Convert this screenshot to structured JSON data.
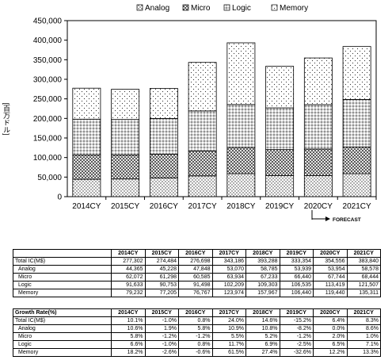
{
  "chart_data": {
    "type": "bar",
    "stacked": true,
    "categories": [
      "2014CY",
      "2015CY",
      "2016CY",
      "2017CY",
      "2018CY",
      "2019CY",
      "2020CY",
      "2021CY"
    ],
    "series": [
      {
        "name": "Analog",
        "pattern": "dots-dense",
        "values": [
          44365,
          45228,
          47848,
          53070,
          58785,
          53939,
          53954,
          58578
        ]
      },
      {
        "name": "Micro",
        "pattern": "crosshatch",
        "values": [
          62072,
          61298,
          60585,
          63934,
          67233,
          66440,
          67744,
          68444
        ]
      },
      {
        "name": "Logic",
        "pattern": "grid-dots",
        "values": [
          91633,
          90753,
          91498,
          102209,
          109303,
          106535,
          113419,
          121507
        ]
      },
      {
        "name": "Memory",
        "pattern": "sparse-dots",
        "values": [
          79232,
          77205,
          76767,
          123974,
          157967,
          106440,
          119440,
          135311
        ]
      }
    ],
    "ylim": [
      0,
      450000
    ],
    "yticks": [
      "0",
      "50,000",
      "100,000",
      "150,000",
      "200,000",
      "250,000",
      "300,000",
      "350,000",
      "400,000",
      "450,000"
    ],
    "ylabel": "[百万ドル]",
    "legend_position": "top",
    "annotation": "FORECAST"
  },
  "table1": {
    "header": [
      "",
      "2014CY",
      "2015CY",
      "2016CY",
      "2017CY",
      "2018CY",
      "2019CY",
      "2020CY",
      "2021CY"
    ],
    "rows": [
      {
        "label": "Total IC(M$)",
        "indent": false,
        "values": [
          "277,302",
          "274,484",
          "276,698",
          "343,186",
          "393,288",
          "333,354",
          "354,556",
          "383,840"
        ]
      },
      {
        "label": "Analog",
        "indent": true,
        "values": [
          "44,365",
          "45,228",
          "47,848",
          "53,070",
          "58,785",
          "53,939",
          "53,954",
          "58,578"
        ]
      },
      {
        "label": "Micro",
        "indent": true,
        "values": [
          "62,072",
          "61,298",
          "60,585",
          "63,934",
          "67,233",
          "66,440",
          "67,744",
          "68,444"
        ]
      },
      {
        "label": "Logic",
        "indent": true,
        "values": [
          "91,633",
          "90,753",
          "91,498",
          "102,209",
          "109,303",
          "106,535",
          "113,419",
          "121,507"
        ]
      },
      {
        "label": "Memory",
        "indent": true,
        "values": [
          "79,232",
          "77,205",
          "76,767",
          "123,974",
          "157,967",
          "106,440",
          "119,440",
          "135,311"
        ]
      }
    ]
  },
  "table2": {
    "header": [
      "Growth Rate(%)",
      "2014CY",
      "2015CY",
      "2016CY",
      "2017CY",
      "2018CY",
      "2019CY",
      "2020CY",
      "2021CY"
    ],
    "rows": [
      {
        "label": "Total IC(M$)",
        "indent": false,
        "values": [
          "10.1%",
          "-1.0%",
          "0.8%",
          "24.0%",
          "14.6%",
          "-15.2%",
          "6.4%",
          "8.3%"
        ]
      },
      {
        "label": "Analog",
        "indent": true,
        "values": [
          "10.6%",
          "1.9%",
          "5.8%",
          "10.9%",
          "10.8%",
          "-8.2%",
          "0.0%",
          "8.6%"
        ]
      },
      {
        "label": "Micro",
        "indent": true,
        "values": [
          "5.8%",
          "-1.2%",
          "-1.2%",
          "5.5%",
          "5.2%",
          "-1.2%",
          "2.0%",
          "1.0%"
        ]
      },
      {
        "label": "Logic",
        "indent": true,
        "values": [
          "6.6%",
          "-1.0%",
          "0.8%",
          "11.7%",
          "6.9%",
          "-2.5%",
          "6.5%",
          "7.1%"
        ]
      },
      {
        "label": "Memory",
        "indent": true,
        "values": [
          "18.2%",
          "-2.6%",
          "-0.6%",
          "61.5%",
          "27.4%",
          "-32.6%",
          "12.2%",
          "13.3%"
        ]
      }
    ]
  }
}
